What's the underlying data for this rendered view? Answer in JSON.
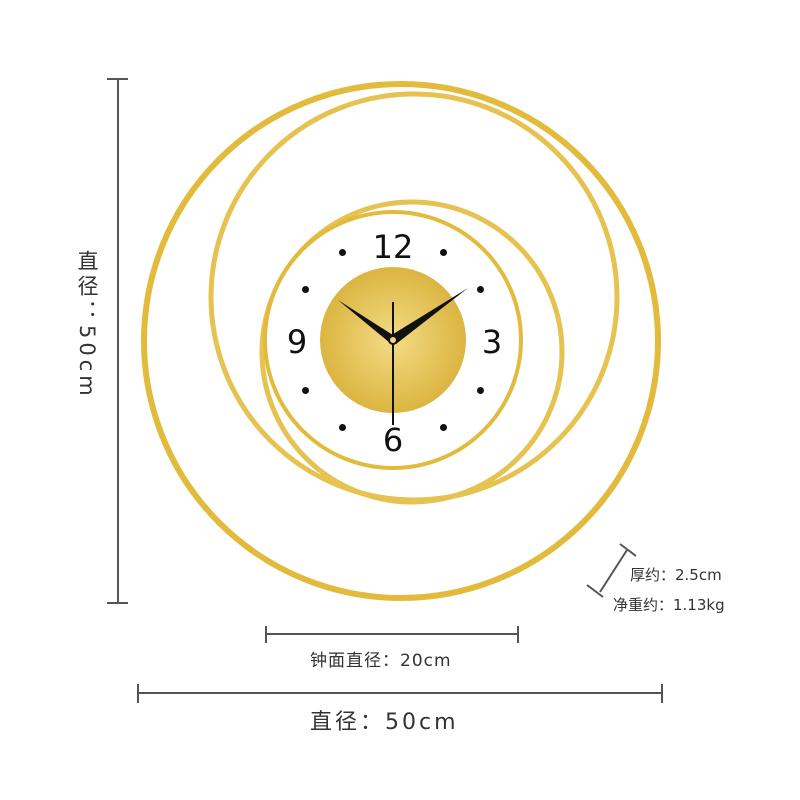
{
  "dimensions": {
    "height_label": "直径：50cm",
    "width_label": "直径：50cm",
    "face_label": "钟面直径：20cm",
    "thickness_label": "厚约：2.5cm",
    "weight_label": "净重约：1.13kg"
  },
  "clock": {
    "numerals": {
      "twelve": "12",
      "three": "3",
      "six": "6",
      "nine": "9"
    },
    "colors": {
      "gold": "#e0b93a",
      "gold_light": "#f0d77a",
      "face": "#ffffff",
      "hands": "#111111",
      "annotation": "#555555"
    }
  }
}
